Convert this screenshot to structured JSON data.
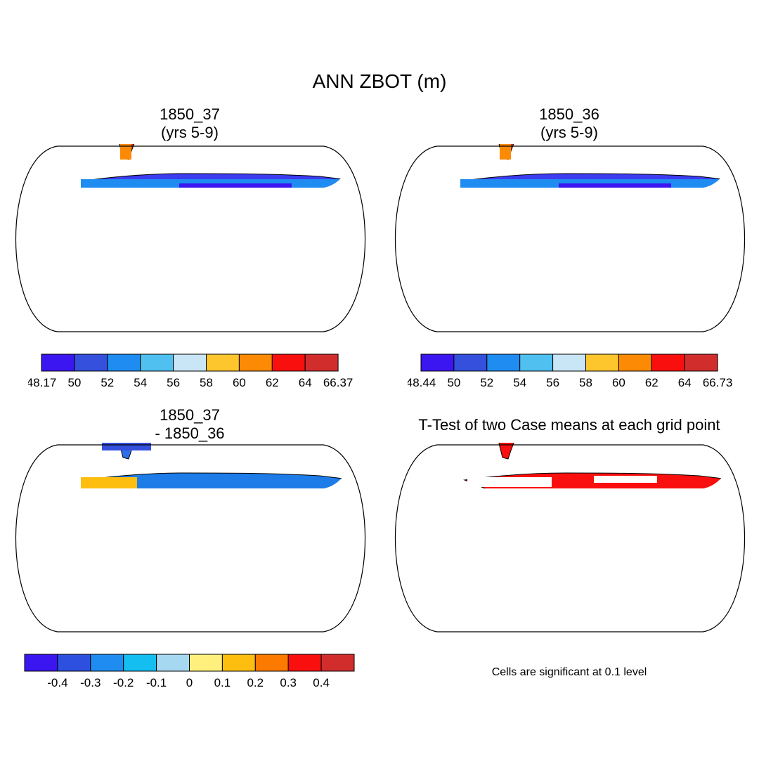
{
  "figure": {
    "title": "ANN ZBOT (m)"
  },
  "panels": [
    {
      "id": "case1",
      "title_line1": "1850_37",
      "title_line2": "(yrs 5-9)",
      "colorbar": {
        "colors": [
          "#3c16f0",
          "#3550dc",
          "#1e8cf0",
          "#50c0f0",
          "#c8e6f5",
          "#fdc62d",
          "#fd8a05",
          "#fa0f0f",
          "#d22d2d"
        ],
        "labels": [
          "48.17",
          "50",
          "52",
          "54",
          "56",
          "58",
          "60",
          "62",
          "64",
          "66.37"
        ]
      }
    },
    {
      "id": "case2",
      "title_line1": "1850_36",
      "title_line2": "(yrs 5-9)",
      "colorbar": {
        "colors": [
          "#3c16f0",
          "#3550dc",
          "#1e8cf0",
          "#50c0f0",
          "#c8e6f5",
          "#fdc62d",
          "#fd8a05",
          "#fa0f0f",
          "#d22d2d"
        ],
        "labels": [
          "48.44",
          "50",
          "52",
          "54",
          "56",
          "58",
          "60",
          "62",
          "64",
          "66.73"
        ]
      }
    },
    {
      "id": "diff",
      "title_line1": "1850_37",
      "title_line2": "- 1850_36",
      "colorbar": {
        "colors": [
          "#3c16f0",
          "#2e50e0",
          "#1e8cf0",
          "#14bef0",
          "#a6d8f2",
          "#fff07d",
          "#fdbe10",
          "#fd7a00",
          "#fa0f0f",
          "#d22d2d"
        ],
        "labels": [
          "-0.4",
          "-0.3",
          "-0.2",
          "-0.1",
          "0",
          "0.1",
          "0.2",
          "0.3",
          "0.4"
        ]
      }
    },
    {
      "id": "ttest",
      "title_line1": "T-Test of two Case means at each grid point",
      "note": "Cells are significant at 0.1 level"
    }
  ],
  "map_colors": {
    "ocean": "#ffffff",
    "tropics_high": "#d22d2d",
    "significant": "#fa0f0f"
  }
}
